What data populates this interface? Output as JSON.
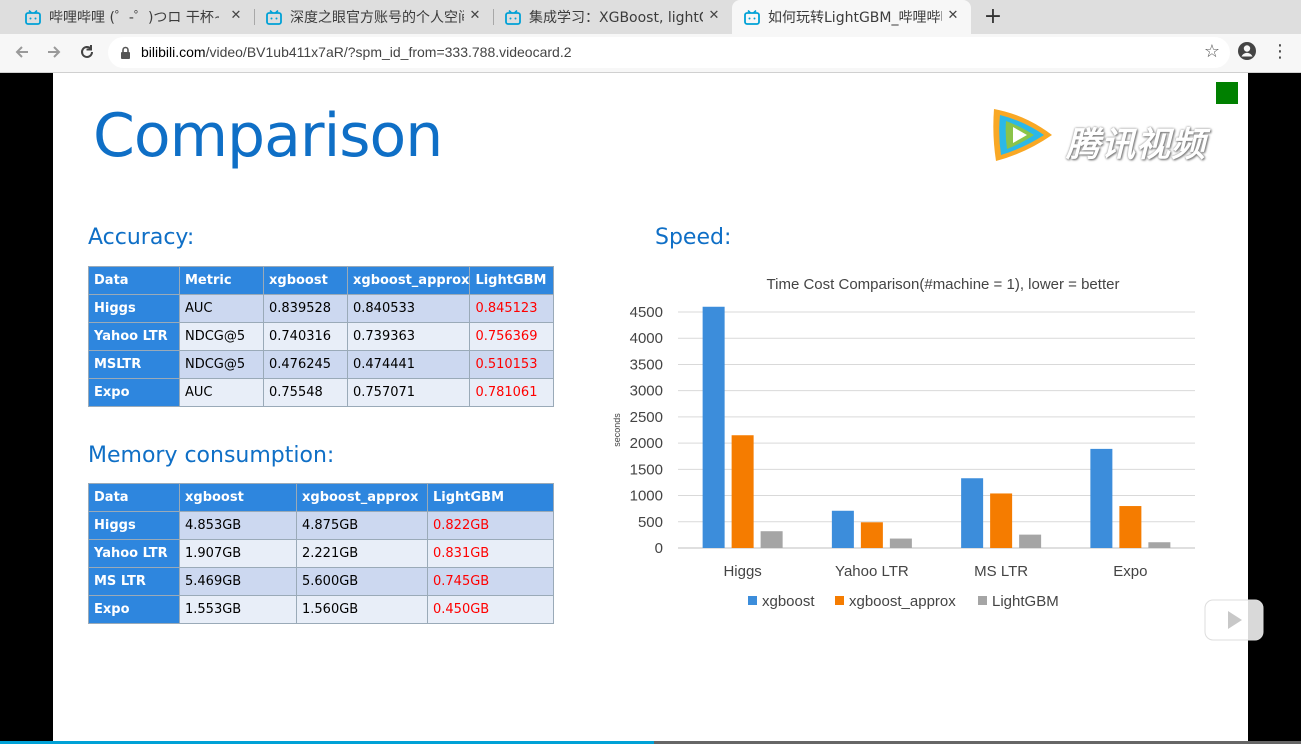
{
  "browser": {
    "tabs": [
      {
        "title": "哔哩哔哩 (゜-゜)つロ 干杯~",
        "active": false
      },
      {
        "title": "深度之眼官方账号的个人空间",
        "active": false
      },
      {
        "title": "集成学习：XGBoost, lightGBM",
        "active": false
      },
      {
        "title": "如何玩转LightGBM_哔哩哔哩",
        "active": true
      }
    ],
    "close_glyph": "✕",
    "new_tab_glyph": "+",
    "url_domain": "bilibili.com",
    "url_path": "/video/BV1ub411x7aR/?spm_id_from=333.788.videocard.2",
    "icons": [
      "back-icon",
      "forward-icon",
      "reload-icon",
      "lock-icon",
      "star-icon",
      "profile-icon",
      "menu-icon"
    ]
  },
  "slide": {
    "title": "Comparison",
    "watermark_text": "腾讯视频",
    "accuracy": {
      "heading": "Accuracy:",
      "columns": [
        "Data",
        "Metric",
        "xgboost",
        "xgboost_approx",
        "LightGBM"
      ],
      "rows": [
        [
          "Higgs",
          "AUC",
          "0.839528",
          "0.840533",
          "0.845123"
        ],
        [
          "Yahoo LTR",
          "NDCG@5",
          "0.740316",
          "0.739363",
          "0.756369"
        ],
        [
          "MSLTR",
          "NDCG@5",
          "0.476245",
          "0.474441",
          "0.510153"
        ],
        [
          "Expo",
          "AUC",
          "0.75548",
          "0.757071",
          "0.781061"
        ]
      ]
    },
    "memory": {
      "heading": "Memory consumption:",
      "columns": [
        "Data",
        "xgboost",
        "xgboost_approx",
        "LightGBM"
      ],
      "rows": [
        [
          "Higgs",
          "4.853GB",
          "4.875GB",
          "0.822GB"
        ],
        [
          "Yahoo LTR",
          "1.907GB",
          "2.221GB",
          "0.831GB"
        ],
        [
          "MS LTR",
          "5.469GB",
          "5.600GB",
          "0.745GB"
        ],
        [
          "Expo",
          "1.553GB",
          "1.560GB",
          "0.450GB"
        ]
      ]
    },
    "speed": {
      "heading": "Speed:"
    },
    "colors": {
      "accent": "#0f6fc6",
      "header_bg": "#2e86de",
      "highlight": "#ff0000",
      "marker": "#008000"
    }
  },
  "chart_data": {
    "type": "bar",
    "title": "Time Cost Comparison(#machine = 1), lower = better",
    "xlabel": "",
    "ylabel": "seconds",
    "categories": [
      "Higgs",
      "Yahoo LTR",
      "MS LTR",
      "Expo"
    ],
    "series": [
      {
        "name": "xgboost",
        "color": "#3c8ddb",
        "values": [
          4600,
          710,
          1330,
          1890
        ]
      },
      {
        "name": "xgboost_approx",
        "color": "#f57c00",
        "values": [
          2150,
          490,
          1040,
          800
        ]
      },
      {
        "name": "LightGBM",
        "color": "#a5a5a5",
        "values": [
          320,
          180,
          255,
          110
        ]
      }
    ],
    "ylim": [
      0,
      4500
    ],
    "yticks": [
      0,
      500,
      1000,
      1500,
      2000,
      2500,
      3000,
      3500,
      4000,
      4500
    ],
    "grid": true,
    "legend": "bottom"
  },
  "player": {
    "progress": 0.503
  }
}
